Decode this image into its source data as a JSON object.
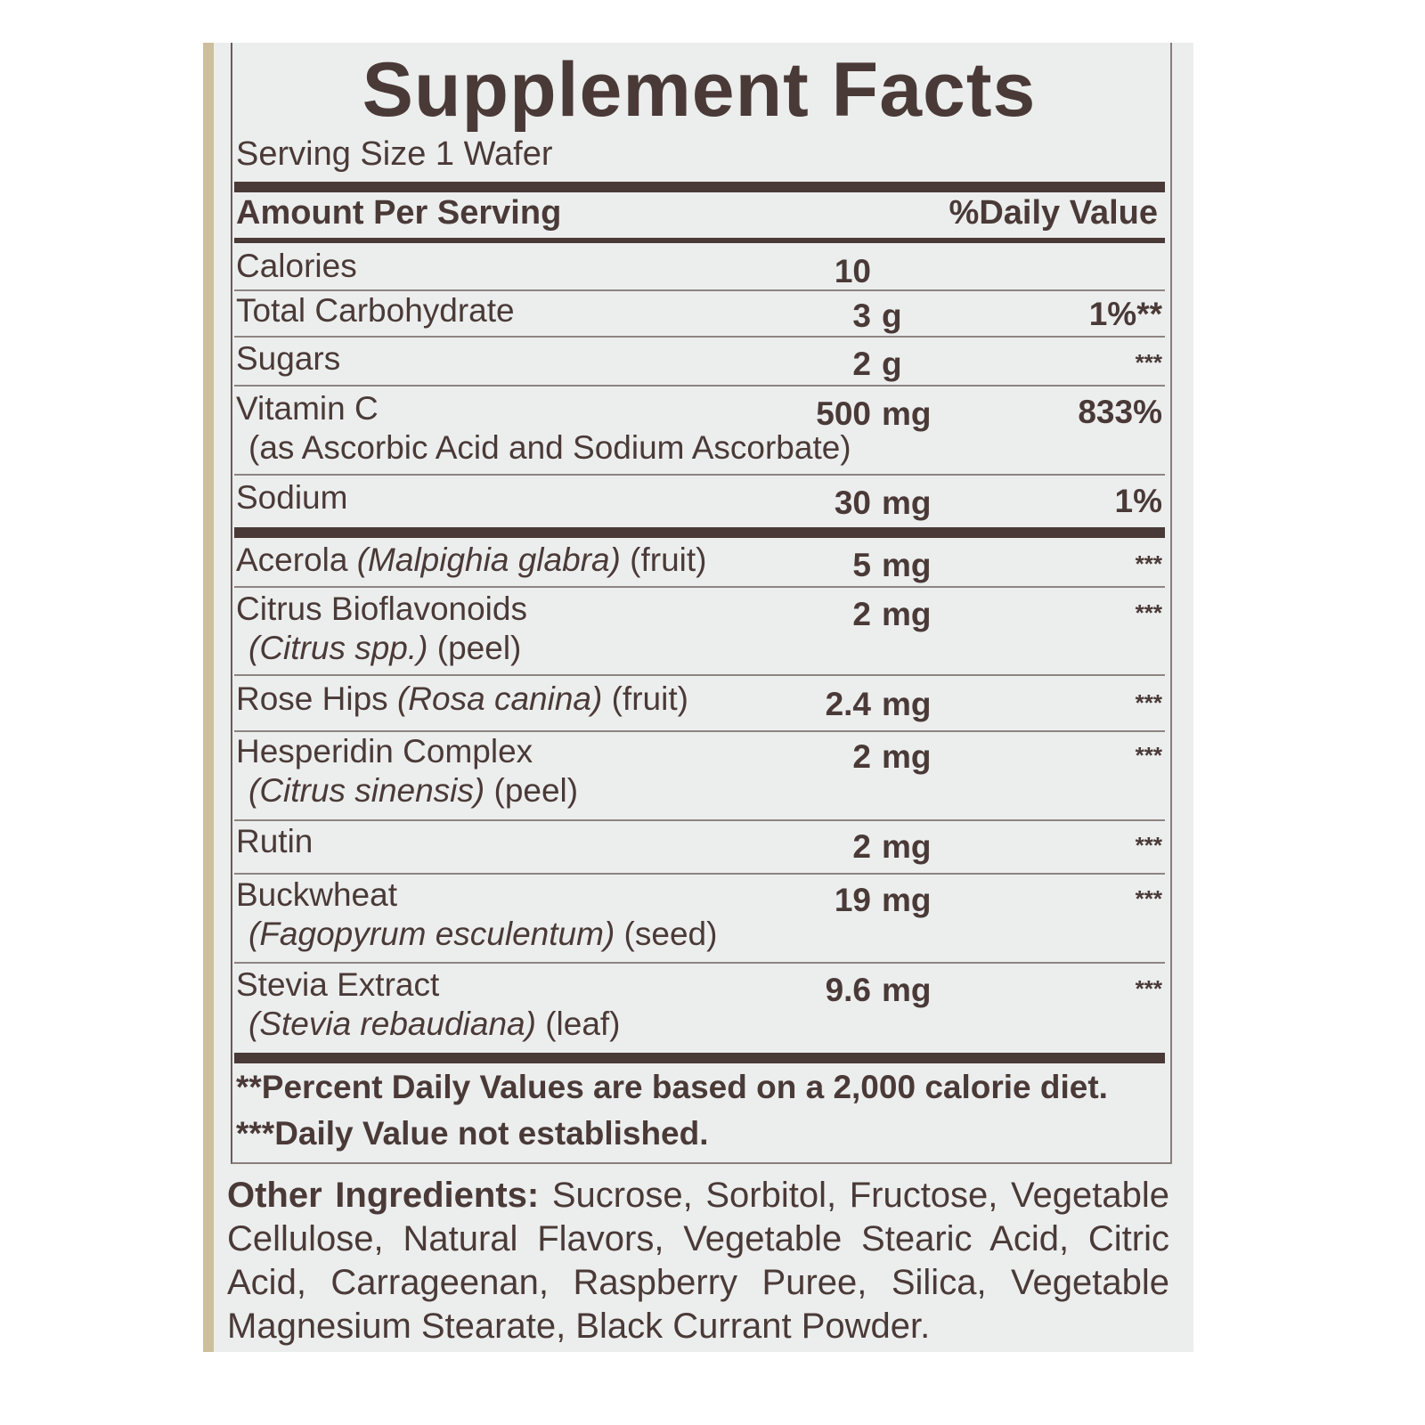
{
  "title": "Supplement Facts",
  "serving_size": "Serving Size 1 Wafer",
  "header": {
    "amount": "Amount Per Serving",
    "dv": "%Daily Value"
  },
  "rows": [
    {
      "name": "Calories",
      "num": "10",
      "unit": "",
      "dv": ""
    },
    {
      "name": "Total Carbohydrate",
      "num": "3",
      "unit": "g",
      "dv": "1%**"
    },
    {
      "name": " Sugars",
      "num": "2",
      "unit": "g",
      "dv": "***"
    },
    {
      "name": "Vitamin C",
      "sub": "(as Ascorbic Acid and Sodium Ascorbate)",
      "num": "500",
      "unit": "mg",
      "dv": "833%"
    },
    {
      "name": "Sodium",
      "num": "30",
      "unit": "mg",
      "dv": "1%"
    },
    {
      "name": "Acerola",
      "latin": "(Malpighia glabra)",
      "part": "(fruit)",
      "num": "5",
      "unit": "mg",
      "dv": "***"
    },
    {
      "name": "Citrus Bioflavonoids",
      "latin": "(Citrus spp.)",
      "part": "(peel)",
      "num": "2",
      "unit": "mg",
      "dv": "***"
    },
    {
      "name": "Rose Hips",
      "latin": "(Rosa canina)",
      "part": "(fruit)",
      "num": "2.4",
      "unit": "mg",
      "dv": "***"
    },
    {
      "name": "Hesperidin Complex",
      "latin": "(Citrus sinensis)",
      "part": "(peel)",
      "num": "2",
      "unit": "mg",
      "dv": "***"
    },
    {
      "name": "Rutin",
      "num": "2",
      "unit": "mg",
      "dv": "***"
    },
    {
      "name": "Buckwheat",
      "latin": "(Fagopyrum esculentum)",
      "part": "(seed)",
      "num": "19",
      "unit": "mg",
      "dv": "***"
    },
    {
      "name": "Stevia Extract",
      "latin": "(Stevia rebaudiana)",
      "part": "(leaf)",
      "num": "9.6",
      "unit": "mg",
      "dv": "***"
    }
  ],
  "footnotes": [
    "**Percent Daily Values are based on a 2,000 calorie diet.",
    "***Daily Value not established."
  ],
  "other_ingredients": {
    "label": "Other Ingredients:",
    "text": " Sucrose, Sorbitol, Fructose, Vegetable Cellulose, Natural Flavors, Vegetable Stearic Acid, Citric Acid, Carrageenan, Raspberry Puree, Silica, Vegetable Magnesium Stearate, Black Currant Powder."
  },
  "colors": {
    "text": "#4a3a37",
    "label_bg": "#eceeee",
    "edge": "#cdbf9c"
  }
}
